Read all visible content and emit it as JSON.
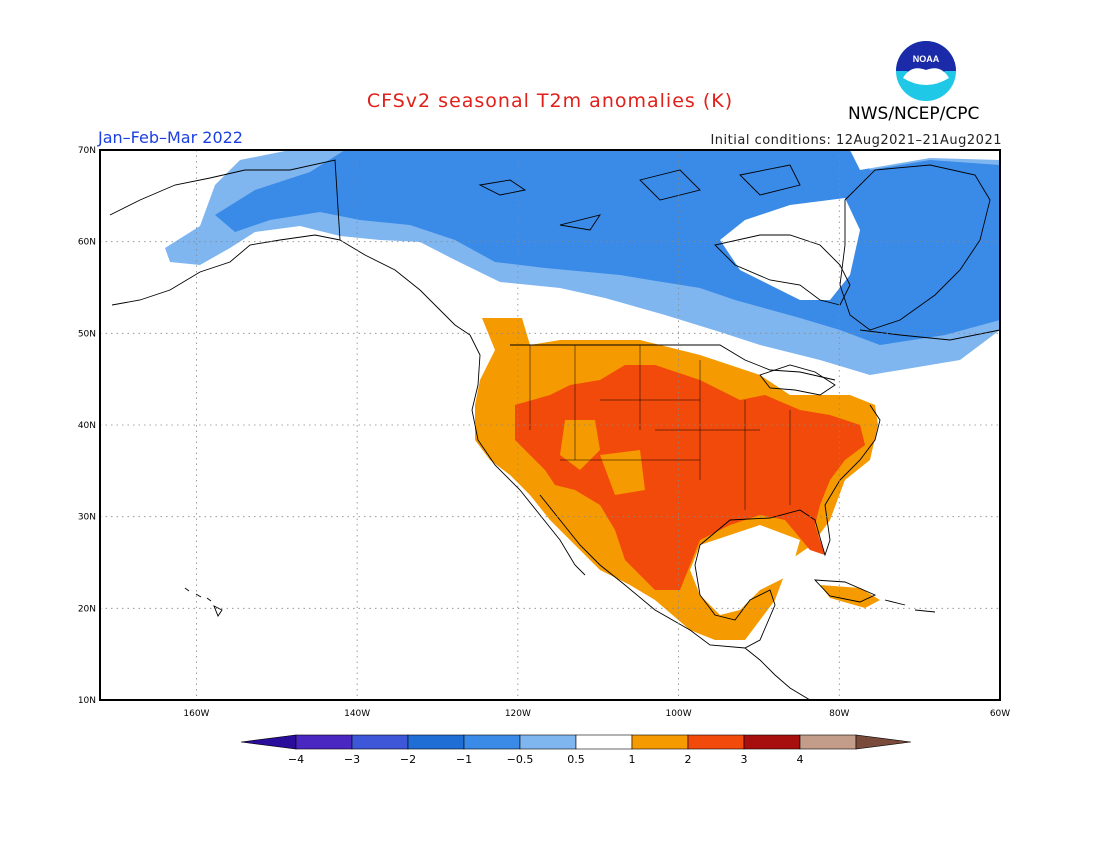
{
  "title": "CFSv2 seasonal T2m anomalies (K)",
  "season": "Jan–Feb–Mar 2022",
  "initial_conditions": "Initial conditions: 12Aug2021–21Aug2021",
  "agency": "NWS/NCEP/CPC",
  "logo_text": "NOAA",
  "map": {
    "lon_range": [
      -172,
      -60
    ],
    "lat_range": [
      10,
      70
    ],
    "lon_ticks": [
      {
        "value": -160,
        "label": "160W"
      },
      {
        "value": -140,
        "label": "140W"
      },
      {
        "value": -120,
        "label": "120W"
      },
      {
        "value": -100,
        "label": "100W"
      },
      {
        "value": -80,
        "label": "80W"
      },
      {
        "value": -60,
        "label": "60W"
      }
    ],
    "lat_ticks": [
      {
        "value": 10,
        "label": "10N"
      },
      {
        "value": 20,
        "label": "20N"
      },
      {
        "value": 30,
        "label": "30N"
      },
      {
        "value": 40,
        "label": "40N"
      },
      {
        "value": 50,
        "label": "50N"
      },
      {
        "value": 60,
        "label": "60N"
      },
      {
        "value": 70,
        "label": "70N"
      }
    ],
    "grid": true
  },
  "colorbar": {
    "labels": [
      "−4",
      "−3",
      "−2",
      "−1",
      "−0.5",
      "0.5",
      "1",
      "2",
      "3",
      "4"
    ],
    "colors": [
      "#4b27c2",
      "#3d57d8",
      "#1f6ed6",
      "#3a8ae8",
      "#7fb6f0",
      "#ffffff",
      "#f59a00",
      "#f24a0a",
      "#a70e0e",
      "#c49d8a"
    ],
    "under_color": "#2a0d9a",
    "over_color": "#7a4a3a"
  }
}
